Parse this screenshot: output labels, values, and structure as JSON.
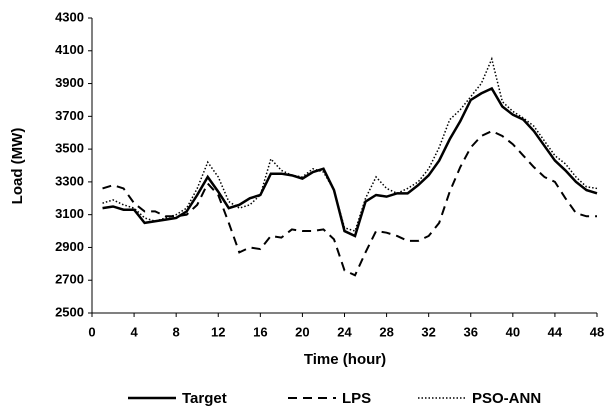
{
  "chart_data": {
    "type": "line",
    "x_label": "Time (hour)",
    "y_label": "Load (MW)",
    "x": [
      1,
      2,
      3,
      4,
      5,
      6,
      7,
      8,
      9,
      10,
      11,
      12,
      13,
      14,
      15,
      16,
      17,
      18,
      19,
      20,
      21,
      22,
      23,
      24,
      25,
      26,
      27,
      28,
      29,
      30,
      31,
      32,
      33,
      34,
      35,
      36,
      37,
      38,
      39,
      40,
      41,
      42,
      43,
      44,
      45,
      46,
      47,
      48
    ],
    "series": [
      {
        "name": "Target",
        "color": "#000000",
        "style": "solid",
        "values": [
          3140,
          3150,
          3130,
          3130,
          3050,
          3060,
          3070,
          3080,
          3120,
          3220,
          3330,
          3240,
          3140,
          3160,
          3200,
          3220,
          3350,
          3350,
          3340,
          3320,
          3360,
          3380,
          3250,
          3000,
          2970,
          3180,
          3220,
          3210,
          3230,
          3230,
          3280,
          3340,
          3430,
          3560,
          3670,
          3800,
          3840,
          3870,
          3760,
          3710,
          3680,
          3610,
          3520,
          3430,
          3370,
          3300,
          3250,
          3230
        ]
      },
      {
        "name": "LPS",
        "color": "#000000",
        "style": "dashed",
        "values": [
          3260,
          3280,
          3260,
          3170,
          3120,
          3120,
          3090,
          3090,
          3100,
          3160,
          3290,
          3220,
          3050,
          2870,
          2900,
          2890,
          2970,
          2960,
          3010,
          3000,
          3000,
          3010,
          2950,
          2760,
          2730,
          2870,
          3000,
          2990,
          2970,
          2940,
          2940,
          2970,
          3050,
          3240,
          3390,
          3510,
          3580,
          3610,
          3580,
          3530,
          3460,
          3390,
          3330,
          3300,
          3200,
          3110,
          3090,
          3090
        ]
      },
      {
        "name": "PSO-ANN",
        "color": "#000000",
        "style": "dotted",
        "values": [
          3170,
          3190,
          3160,
          3140,
          3080,
          3060,
          3080,
          3100,
          3140,
          3260,
          3420,
          3330,
          3180,
          3140,
          3160,
          3220,
          3440,
          3370,
          3340,
          3330,
          3380,
          3360,
          3250,
          3020,
          3000,
          3200,
          3330,
          3260,
          3230,
          3260,
          3300,
          3380,
          3510,
          3680,
          3740,
          3820,
          3900,
          4050,
          3790,
          3730,
          3690,
          3640,
          3550,
          3460,
          3410,
          3330,
          3270,
          3260
        ]
      }
    ],
    "xlim": [
      0,
      48
    ],
    "xticks": [
      0,
      4,
      8,
      12,
      16,
      20,
      24,
      28,
      32,
      36,
      40,
      44,
      48
    ],
    "ylim": [
      2500,
      4300
    ],
    "yticks": [
      2500,
      2700,
      2900,
      3100,
      3300,
      3500,
      3700,
      3900,
      4100,
      4300
    ],
    "grid": false,
    "legend": "bottom"
  }
}
